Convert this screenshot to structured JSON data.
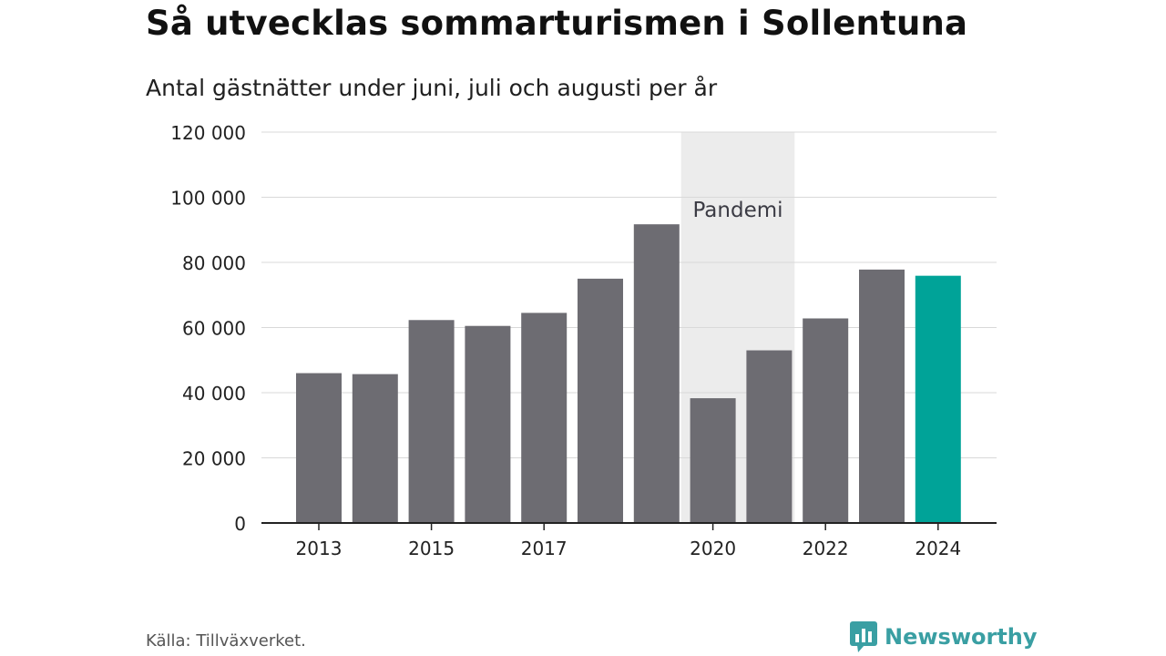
{
  "title": "Så utvecklas sommarturismen i Sollentuna",
  "subtitle": "Antal gästnätter under juni, juli och augusti per år",
  "source": "Källa: Tillväxverket.",
  "brand": {
    "name": "Newsworthy",
    "icon": "newsworthy-logo-icon",
    "color": "#3a9fa3"
  },
  "colors": {
    "bar": "#6d6c72",
    "highlight": "#00a398",
    "shade": "#ececec",
    "grid": "#d9d9d9",
    "axis": "#222222"
  },
  "chart_data": {
    "type": "bar",
    "categories": [
      "2013",
      "2014",
      "2015",
      "2016",
      "2017",
      "2018",
      "2019",
      "2020",
      "2021",
      "2022",
      "2023",
      "2024"
    ],
    "values": [
      46000,
      45700,
      62300,
      60500,
      64500,
      75000,
      91700,
      38300,
      53000,
      62800,
      77800,
      75900
    ],
    "x_tick_labels": [
      "2013",
      "2015",
      "2017",
      "2020",
      "2022",
      "2024"
    ],
    "y_ticks": [
      0,
      20000,
      40000,
      60000,
      80000,
      100000,
      120000
    ],
    "y_tick_labels": [
      "0",
      "20 000",
      "40 000",
      "60 000",
      "80 000",
      "100 000",
      "120 000"
    ],
    "ylim": [
      0,
      120000
    ],
    "highlight_category": "2024",
    "shaded_region": {
      "from": "2020",
      "to": "2021",
      "label": "Pandemi"
    },
    "grid": true,
    "legend": "none"
  }
}
